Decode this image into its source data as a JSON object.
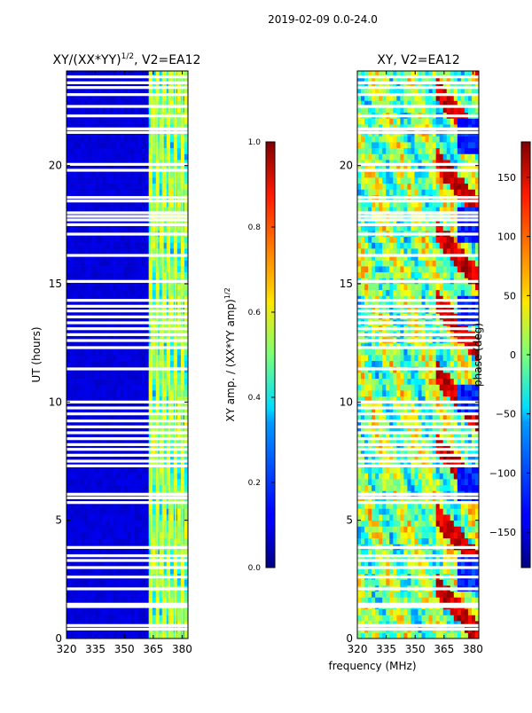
{
  "suptitle": "2019-02-09 0.0-24.0",
  "chart_data": [
    {
      "type": "heatmap",
      "title": "XY/(XX*YY)",
      "title_exponent": "1/2",
      "title_suffix": ", V2=EA12",
      "xlabel": "frequency (MHz)",
      "ylabel": "UT (hours)",
      "xlim": [
        320,
        383
      ],
      "ylim": [
        0,
        24
      ],
      "xticks": [
        "320",
        "335",
        "350",
        "365",
        "380"
      ],
      "xtick_values": [
        320,
        335,
        350,
        365,
        380
      ],
      "yticks": [
        "0",
        "5",
        "10",
        "15",
        "20"
      ],
      "ytick_values": [
        0,
        5,
        10,
        15,
        20
      ],
      "colorbar": {
        "label": "XY amp. / (XX*YY amp)",
        "label_exponent": "1/2",
        "range": [
          0.0,
          1.0
        ],
        "ticks": [
          "0.0",
          "0.2",
          "0.4",
          "0.6",
          "0.8",
          "1.0"
        ],
        "tick_values": [
          0.0,
          0.2,
          0.4,
          0.6,
          0.8,
          1.0
        ],
        "colormap": "jet"
      },
      "gap_hours": [
        0.4,
        0.55,
        1.35,
        1.45,
        2.1,
        2.6,
        3.0,
        3.3,
        3.5,
        3.85,
        5.75,
        5.95,
        6.1,
        7.3,
        7.5,
        7.75,
        8.0,
        8.2,
        8.45,
        8.7,
        8.95,
        9.2,
        9.5,
        9.75,
        10.0,
        11.4,
        12.3,
        12.6,
        12.85,
        13.1,
        13.35,
        13.6,
        13.85,
        14.05,
        14.3,
        15.1,
        16.2,
        17.1,
        17.5,
        17.7,
        17.85,
        18.0,
        18.5,
        18.65,
        19.8,
        20.05,
        21.4,
        21.55,
        22.1,
        22.5,
        23.0,
        23.3,
        23.5,
        23.75
      ]
    },
    {
      "type": "heatmap",
      "title": "XY, V2=EA12",
      "xlim": [
        320,
        383
      ],
      "ylim": [
        0,
        24
      ],
      "xticks": [
        "320",
        "335",
        "350",
        "365",
        "380"
      ],
      "xtick_values": [
        320,
        335,
        350,
        365,
        380
      ],
      "yticks": [
        "0",
        "5",
        "10",
        "15",
        "20"
      ],
      "ytick_values": [
        0,
        5,
        10,
        15,
        20
      ],
      "colorbar": {
        "label": "phase (deg)",
        "range": [
          -180,
          180
        ],
        "ticks": [
          "−150",
          "−100",
          "−50",
          "0",
          "50",
          "100",
          "150"
        ],
        "tick_values": [
          -150,
          -100,
          -50,
          0,
          50,
          100,
          150
        ],
        "colormap": "jet"
      },
      "gap_hours": [
        0.4,
        0.55,
        1.35,
        1.45,
        2.1,
        2.6,
        3.0,
        3.3,
        3.5,
        3.85,
        5.75,
        5.95,
        6.1,
        7.3,
        7.5,
        7.75,
        8.0,
        8.2,
        8.45,
        8.7,
        8.95,
        9.2,
        9.5,
        9.75,
        10.0,
        11.4,
        12.3,
        12.6,
        12.85,
        13.1,
        13.35,
        13.6,
        13.85,
        14.05,
        14.3,
        15.1,
        16.2,
        17.1,
        17.5,
        17.7,
        17.85,
        18.0,
        18.5,
        18.65,
        19.8,
        20.05,
        21.4,
        21.55,
        22.1,
        22.5,
        23.0,
        23.3,
        23.5,
        23.75
      ]
    }
  ]
}
